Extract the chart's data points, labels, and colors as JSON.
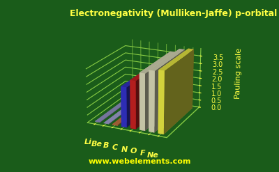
{
  "title": "Electronegativity (Mulliken-Jaffe) p-orbital",
  "ylabel": "Pauling scale",
  "watermark": "www.webelements.com",
  "elements": [
    "Li",
    "Be",
    "B",
    "C",
    "N",
    "O",
    "F",
    "Ne"
  ],
  "values": [
    0.02,
    0.02,
    0.05,
    2.6,
    3.1,
    3.65,
    3.9,
    4.0
  ],
  "bar_colors": [
    "#9999cc",
    "#aaaadd",
    "#cc7744",
    "#3333cc",
    "#cc2222",
    "#ddddbb",
    "#ddddbb",
    "#eeee44"
  ],
  "background_color": "#1a5c1a",
  "title_color": "#ffff44",
  "ylabel_color": "#ffff44",
  "tick_color": "#ffff44",
  "grid_color": "#88cc44",
  "watermark_color": "#ffff00",
  "base_color": "#661111",
  "ylim": [
    0,
    4.0
  ],
  "yticks": [
    0.0,
    0.5,
    1.0,
    1.5,
    2.0,
    2.5,
    3.0,
    3.5
  ]
}
